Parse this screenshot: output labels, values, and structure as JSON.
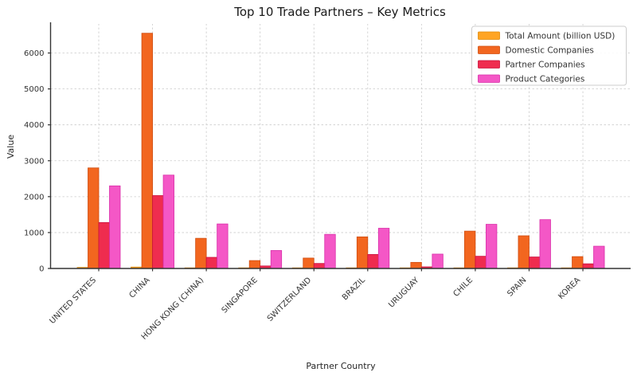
{
  "chart_data": {
    "type": "bar",
    "title": "Top 10 Trade Partners – Key Metrics",
    "xlabel": "Partner Country",
    "ylabel": "Value",
    "categories": [
      "UNITED STATES",
      "CHINA",
      "HONG KONG (CHINA)",
      "SINGAPORE",
      "SWITZERLAND",
      "BRAZIL",
      "URUGUAY",
      "CHILE",
      "SPAIN",
      "KOREA"
    ],
    "series": [
      {
        "name": "Total Amount (billion USD)",
        "color": "#FFA424",
        "edge_color": "#e08a0a",
        "values": [
          30,
          40,
          10,
          8,
          8,
          10,
          5,
          10,
          8,
          8
        ]
      },
      {
        "name": "Domestic Companies",
        "color": "#F2661F",
        "edge_color": "#cf4c0f",
        "values": [
          2800,
          6550,
          840,
          220,
          290,
          880,
          170,
          1040,
          910,
          330
        ]
      },
      {
        "name": "Partner Companies",
        "color": "#EF2C4F",
        "edge_color": "#c9103c",
        "values": [
          1280,
          2030,
          310,
          70,
          140,
          390,
          45,
          340,
          320,
          130
        ]
      },
      {
        "name": "Product Categories",
        "color": "#F457C6",
        "edge_color": "#d92fa9",
        "values": [
          2300,
          2600,
          1240,
          500,
          950,
          1120,
          400,
          1230,
          1360,
          620
        ]
      }
    ],
    "yticks": [
      0,
      1000,
      2000,
      3000,
      4000,
      5000,
      6000
    ],
    "ylim": [
      0,
      6810
    ],
    "grid": true,
    "grid_style": "dashed",
    "legend_position": "upper right",
    "background": "#ffffff",
    "axis_color": "#333333",
    "grid_color": "#cccccc"
  }
}
